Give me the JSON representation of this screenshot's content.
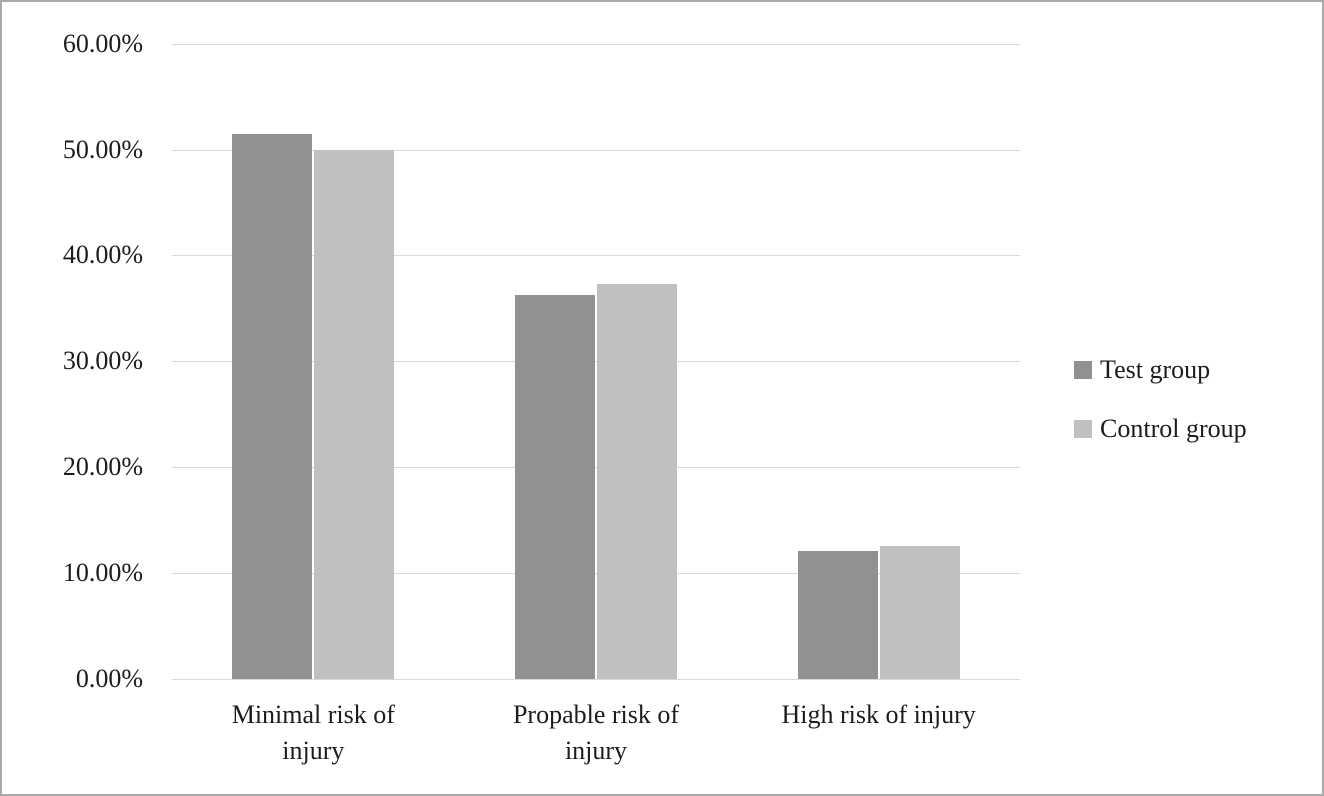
{
  "chart_data": {
    "type": "bar",
    "title": "",
    "xlabel": "",
    "ylabel": "",
    "categories": [
      "Minimal risk of injury",
      "Propable risk of injury",
      "High risk of injury"
    ],
    "x_tick_display": [
      "Minimal risk of\ninjury",
      "Propable risk of\ninjury",
      "High risk of injury"
    ],
    "series": [
      {
        "name": "Test group",
        "color": "#919191",
        "values": [
          51.5,
          36.3,
          12.1
        ]
      },
      {
        "name": "Control group",
        "color": "#c0c0c0",
        "values": [
          50.0,
          37.3,
          12.6
        ]
      }
    ],
    "y_ticks": [
      "60.00%",
      "50.00%",
      "40.00%",
      "30.00%",
      "20.00%",
      "10.00%",
      "0.00%"
    ],
    "ylim": [
      0,
      60
    ],
    "y_tick_step": 10,
    "grid": true,
    "legend_position": "right",
    "colors": {
      "gridline": "#d9d9d9",
      "text": "#1c1c1c",
      "frame_border": "#a9a9a9",
      "background": "#ffffff"
    }
  }
}
